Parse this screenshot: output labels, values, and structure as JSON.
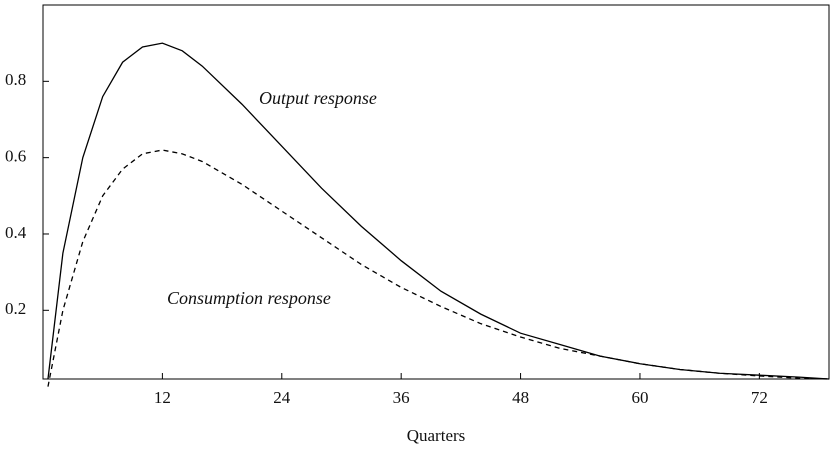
{
  "chart_data": {
    "type": "line",
    "xlabel": "Quarters",
    "annotations": [
      "Output response",
      "Consumption response"
    ],
    "x": [
      0.5,
      2,
      4,
      6,
      8,
      10,
      12,
      14,
      16,
      20,
      24,
      28,
      32,
      36,
      40,
      44,
      48,
      52,
      56,
      60,
      64,
      68,
      72,
      76,
      79
    ],
    "series": [
      {
        "name": "Output response",
        "color": "#000000",
        "dash": false,
        "values": [
          0.02,
          0.35,
          0.6,
          0.76,
          0.85,
          0.89,
          0.9,
          0.88,
          0.84,
          0.74,
          0.63,
          0.52,
          0.42,
          0.33,
          0.25,
          0.19,
          0.14,
          0.11,
          0.08,
          0.06,
          0.045,
          0.035,
          0.03,
          0.025,
          0.02
        ]
      },
      {
        "name": "Consumption response",
        "color": "#000000",
        "dash": true,
        "values": [
          0.0,
          0.2,
          0.38,
          0.5,
          0.57,
          0.61,
          0.62,
          0.61,
          0.59,
          0.53,
          0.46,
          0.39,
          0.32,
          0.26,
          0.21,
          0.165,
          0.13,
          0.1,
          0.08,
          0.06,
          0.045,
          0.035,
          0.028,
          0.022,
          0.02
        ]
      }
    ],
    "xlim": [
      0,
      79
    ],
    "xticks": [
      12,
      24,
      36,
      48,
      60,
      72
    ],
    "ylim": [
      0.02,
      1.0
    ],
    "yticks": [
      0.2,
      0.4,
      0.6,
      0.8
    ]
  }
}
